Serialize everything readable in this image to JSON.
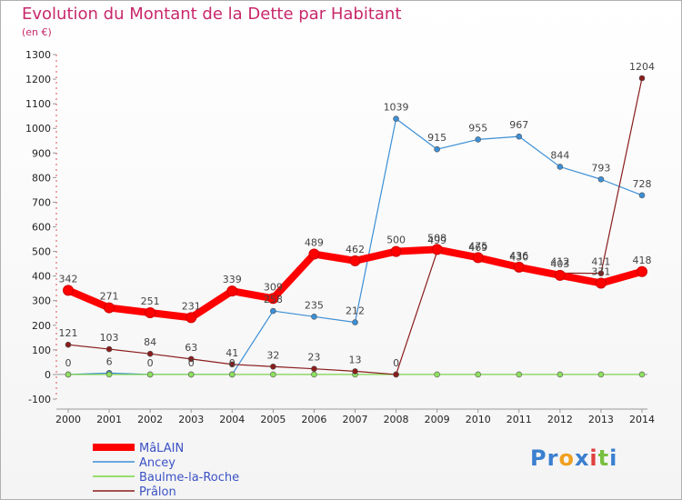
{
  "chart_data": {
    "type": "line",
    "title": "Evolution du Montant de la Dette par Habitant",
    "subtitle": "(en €)",
    "xlabel": "",
    "ylabel": "",
    "categories": [
      "2000",
      "2001",
      "2002",
      "2003",
      "2004",
      "2005",
      "2006",
      "2007",
      "2008",
      "2009",
      "2010",
      "2011",
      "2012",
      "2013",
      "2014"
    ],
    "ylim": [
      -100,
      1300
    ],
    "yticks": [
      -100,
      0,
      100,
      200,
      300,
      400,
      500,
      600,
      700,
      800,
      900,
      1000,
      1100,
      1200,
      1300
    ],
    "grid": false,
    "legend_position": "bottom-left",
    "series": [
      {
        "name": "MâLAIN",
        "color": "#ff0000",
        "values": [
          342,
          271,
          251,
          231,
          339,
          309,
          489,
          462,
          500,
          508,
          475,
          436,
          403,
          371,
          418
        ]
      },
      {
        "name": "Ancey",
        "color": "#3c8fd6",
        "values": [
          0,
          6,
          0,
          0,
          0,
          258,
          235,
          212,
          1039,
          915,
          955,
          967,
          844,
          793,
          728
        ]
      },
      {
        "name": "Baulme-la-Roche",
        "color": "#78d640",
        "values": [
          0,
          0,
          0,
          0,
          0,
          0,
          0,
          0,
          0,
          0,
          0,
          0,
          0,
          0,
          0
        ]
      },
      {
        "name": "Prâlon",
        "color": "#8a1c1c",
        "values": [
          121,
          103,
          84,
          63,
          41,
          32,
          23,
          13,
          0,
          499,
          469,
          430,
          412,
          411,
          1204
        ]
      }
    ]
  },
  "logo": {
    "parts": [
      {
        "text": "Pr",
        "color": "#3a7fd0"
      },
      {
        "text": "o",
        "color": "#f0a020"
      },
      {
        "text": "x",
        "color": "#3a7fd0"
      },
      {
        "text": "i",
        "color": "#e04040"
      },
      {
        "text": "t",
        "color": "#78c040"
      },
      {
        "text": "i",
        "color": "#3a7fd0"
      }
    ]
  }
}
